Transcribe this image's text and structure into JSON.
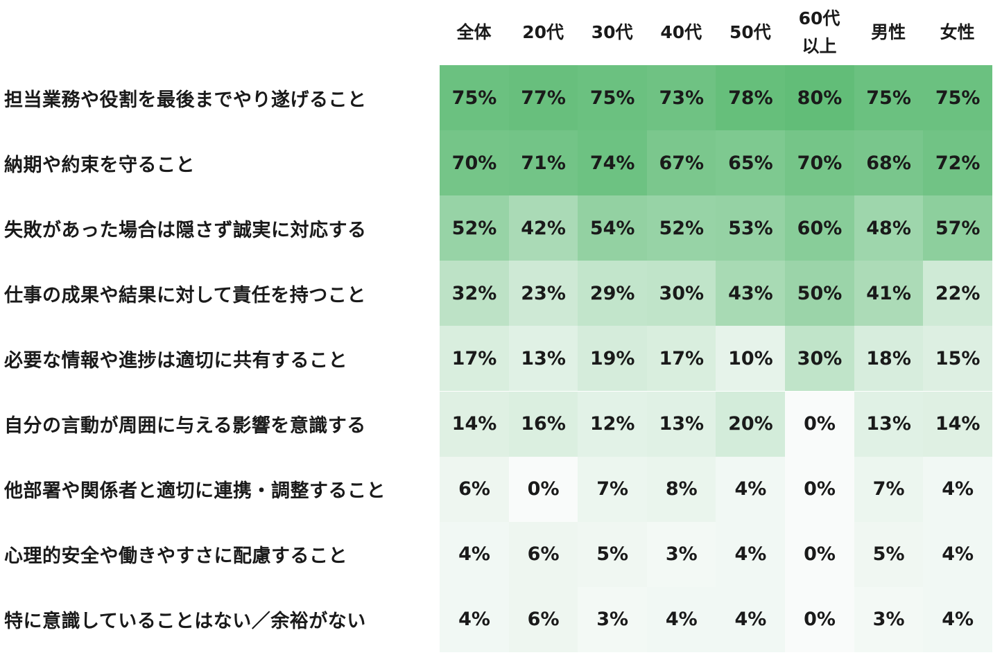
{
  "chart_data": {
    "type": "heatmap",
    "columns": [
      "全体",
      "20代",
      "30代",
      "40代",
      "50代",
      "60代\n以上",
      "男性",
      "女性"
    ],
    "rows": [
      {
        "label": "担当業務や役割を最後までやり遂げること",
        "values": [
          75,
          77,
          75,
          73,
          78,
          80,
          75,
          75
        ]
      },
      {
        "label": "納期や約束を守ること",
        "values": [
          70,
          71,
          74,
          67,
          65,
          70,
          68,
          72
        ]
      },
      {
        "label": "失敗があった場合は隠さず誠実に対応する",
        "values": [
          52,
          42,
          54,
          52,
          53,
          60,
          48,
          57
        ]
      },
      {
        "label": "仕事の成果や結果に対して責任を持つこと",
        "values": [
          32,
          23,
          29,
          30,
          43,
          50,
          41,
          22
        ]
      },
      {
        "label": "必要な情報や進捗は適切に共有すること",
        "values": [
          17,
          13,
          19,
          17,
          10,
          30,
          18,
          15
        ]
      },
      {
        "label": "自分の言動が周囲に与える影響を意識する",
        "values": [
          14,
          16,
          12,
          13,
          20,
          0,
          13,
          14
        ]
      },
      {
        "label": "他部署や関係者と適切に連携・調整すること",
        "values": [
          6,
          0,
          7,
          8,
          4,
          0,
          7,
          4
        ]
      },
      {
        "label": "心理的安全や働きやすさに配慮すること",
        "values": [
          4,
          6,
          5,
          3,
          4,
          0,
          5,
          4
        ]
      },
      {
        "label": "特に意識していることはない／余裕がない",
        "values": [
          4,
          6,
          3,
          4,
          4,
          0,
          3,
          4
        ]
      }
    ],
    "value_suffix": "%",
    "color_scale": {
      "low": "#f9fbfa",
      "high": "#62bd78"
    }
  }
}
